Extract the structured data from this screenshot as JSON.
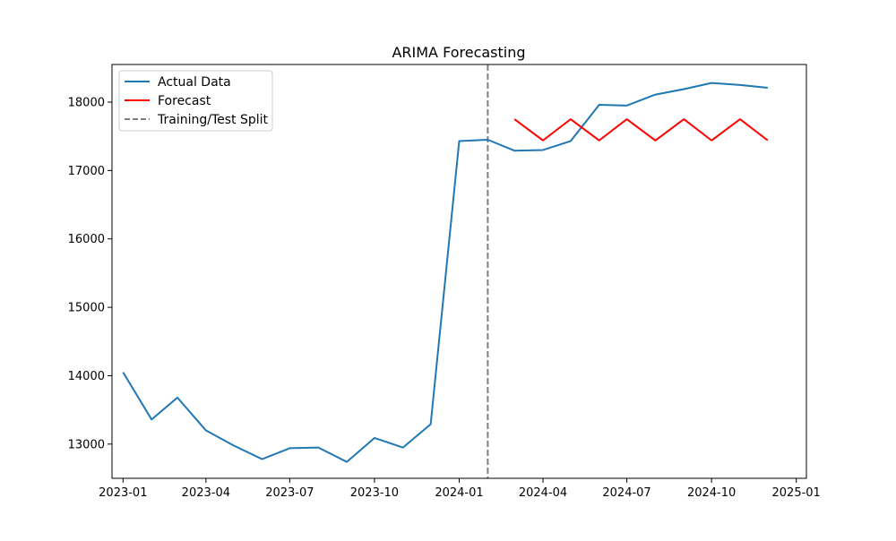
{
  "chart_data": {
    "type": "line",
    "title": "ARIMA Forecasting",
    "xlabel": "",
    "ylabel": "",
    "x_ticks": [
      "2023-01",
      "2023-04",
      "2023-07",
      "2023-10",
      "2024-01",
      "2024-04",
      "2024-07",
      "2024-10",
      "2025-01"
    ],
    "y_ticks": [
      13000,
      14000,
      15000,
      16000,
      17000,
      18000
    ],
    "xlim": [
      "2022-12-20",
      "2025-01-12"
    ],
    "ylim": [
      12500,
      18550
    ],
    "legend_position": "top-left",
    "grid": false,
    "series": [
      {
        "name": "Actual Data",
        "color": "#1f77b4",
        "style": "solid",
        "points": [
          [
            "2023-01-01",
            14050
          ],
          [
            "2023-02-01",
            13360
          ],
          [
            "2023-03-01",
            13680
          ],
          [
            "2023-04-01",
            13200
          ],
          [
            "2023-05-01",
            12980
          ],
          [
            "2023-06-01",
            12780
          ],
          [
            "2023-07-01",
            12940
          ],
          [
            "2023-08-01",
            12950
          ],
          [
            "2023-09-01",
            12740
          ],
          [
            "2023-10-01",
            13090
          ],
          [
            "2023-11-01",
            12950
          ],
          [
            "2023-12-01",
            13290
          ],
          [
            "2024-01-01",
            17430
          ],
          [
            "2024-02-01",
            17450
          ],
          [
            "2024-03-01",
            17290
          ],
          [
            "2024-04-01",
            17300
          ],
          [
            "2024-05-01",
            17430
          ],
          [
            "2024-06-01",
            17960
          ],
          [
            "2024-07-01",
            17950
          ],
          [
            "2024-08-01",
            18110
          ],
          [
            "2024-09-01",
            18190
          ],
          [
            "2024-10-01",
            18280
          ],
          [
            "2024-11-01",
            18250
          ],
          [
            "2024-12-01",
            18210
          ]
        ]
      },
      {
        "name": "Forecast",
        "color": "#ff0000",
        "style": "solid",
        "points": [
          [
            "2024-03-01",
            17750
          ],
          [
            "2024-04-01",
            17440
          ],
          [
            "2024-05-01",
            17750
          ],
          [
            "2024-06-01",
            17440
          ],
          [
            "2024-07-01",
            17750
          ],
          [
            "2024-08-01",
            17440
          ],
          [
            "2024-09-01",
            17750
          ],
          [
            "2024-10-01",
            17440
          ],
          [
            "2024-11-01",
            17750
          ],
          [
            "2024-12-01",
            17440
          ]
        ]
      }
    ],
    "vertical_lines": [
      {
        "name": "Training/Test Split",
        "x": "2024-02-01",
        "color": "#808080",
        "style": "dashed"
      }
    ]
  }
}
